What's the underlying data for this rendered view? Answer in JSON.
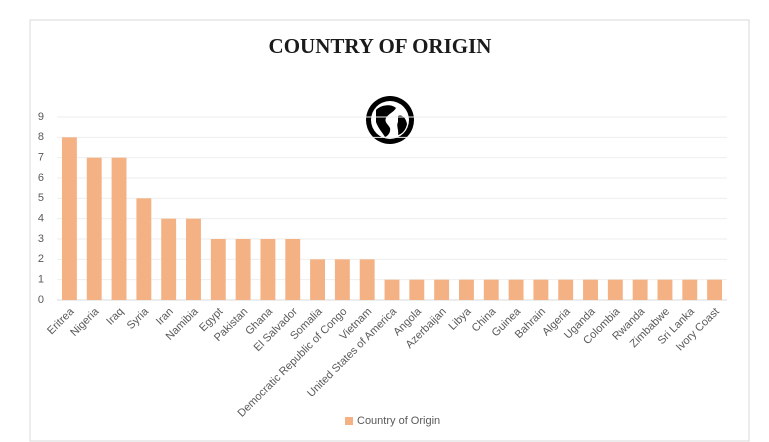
{
  "chart_data": {
    "type": "bar",
    "title": "COUNTRY OF ORIGIN",
    "categories": [
      "Eritrea",
      "Nigeria",
      "Iraq",
      "Syria",
      "Iran",
      "Namibia",
      "Egypt",
      "Pakistan",
      "Ghana",
      "El Salvador",
      "Somalia",
      "Democratic Republic of Congo",
      "Vietnam",
      "United States of America",
      "Angola",
      "Azerbaijan",
      "Libya",
      "China",
      "Guinea",
      "Bahrain",
      "Algeria",
      "Uganda",
      "Colombia",
      "Rwanda",
      "Zimbabwe",
      "Sri Lanka",
      "Ivory Coast"
    ],
    "series": [
      {
        "name": "Country of Origin",
        "color": "#f4b183",
        "values": [
          8,
          7,
          7,
          5,
          4,
          4,
          3,
          3,
          3,
          3,
          2,
          2,
          2,
          1,
          1,
          1,
          1,
          1,
          1,
          1,
          1,
          1,
          1,
          1,
          1,
          1,
          1
        ]
      }
    ],
    "ylim": [
      0,
      9
    ],
    "yticks": [
      0,
      1,
      2,
      3,
      4,
      5,
      6,
      7,
      8,
      9
    ],
    "grid": true,
    "legend": "bottom"
  }
}
